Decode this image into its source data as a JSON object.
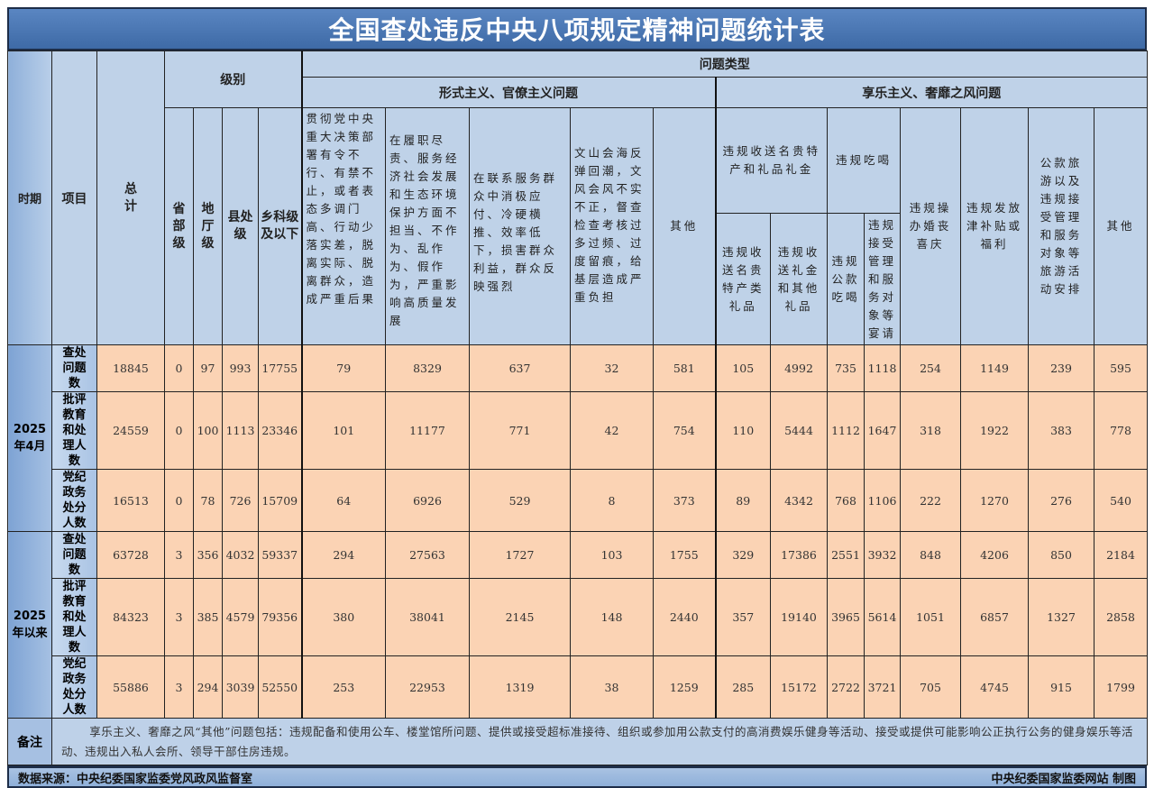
{
  "title": "全国查处违反中央八项规定精神问题统计表",
  "header": {
    "period": "时期",
    "item": "项目",
    "total": "总计",
    "level_group": "级别",
    "levels": [
      "省部级",
      "地厅级",
      "县处级",
      "乡科级及以下"
    ],
    "problem_type": "问题类型",
    "formalism_group": "形式主义、官僚主义问题",
    "formalism_cols": [
      "贯彻党中央重大决策部署有令不行、有禁不止，或者表态多调门高、行动少落实差，脱离实际、脱离群众，造成严重后果",
      "在履职尽责、服务经济社会发展和生态环境保护方面不担当、不作为、乱作为、假作为，严重影响高质量发展",
      "在联系服务群众中消极应付、冷硬横推、效率低下，损害群众利益，群众反映强烈",
      "文山会海反弹回潮，文风会风不实不正，督查检查考核过多过频、过度留痕，给基层造成严重负担",
      "其他"
    ],
    "hedonism_group": "享乐主义、奢靡之风问题",
    "gifts_group": "违规收送名贵特产和礼品礼金",
    "gifts_cols": [
      "违规收送名贵特产类礼品",
      "违规收送礼金和其他礼品"
    ],
    "dining_group": "违规吃喝",
    "dining_cols": [
      "违规公款吃喝",
      "违规接受管理和服务对象等宴请"
    ],
    "hedonism_cols": [
      "违规操办婚丧喜庆",
      "违规发放津补贴或福利",
      "公款旅游以及违规接受管理和服务对象等旅游活动安排",
      "其他"
    ]
  },
  "periods": [
    {
      "label": "2025年4月",
      "rows": [
        {
          "item": "查处问题数",
          "values": [
            18845,
            0,
            97,
            993,
            17755,
            79,
            8329,
            637,
            32,
            581,
            105,
            4992,
            735,
            1118,
            254,
            1149,
            239,
            595
          ]
        },
        {
          "item": "批评教育和处理人数",
          "values": [
            24559,
            0,
            100,
            1113,
            23346,
            101,
            11177,
            771,
            42,
            754,
            110,
            5444,
            1112,
            1647,
            318,
            1922,
            383,
            778
          ]
        },
        {
          "item": "党纪政务处分人数",
          "values": [
            16513,
            0,
            78,
            726,
            15709,
            64,
            6926,
            529,
            8,
            373,
            89,
            4342,
            768,
            1106,
            222,
            1270,
            276,
            540
          ]
        }
      ]
    },
    {
      "label": "2025年以来",
      "rows": [
        {
          "item": "查处问题数",
          "values": [
            63728,
            3,
            356,
            4032,
            59337,
            294,
            27563,
            1727,
            103,
            1755,
            329,
            17386,
            2551,
            3932,
            848,
            4206,
            850,
            2184
          ]
        },
        {
          "item": "批评教育和处理人数",
          "values": [
            84323,
            3,
            385,
            4579,
            79356,
            380,
            38041,
            2145,
            148,
            2440,
            357,
            19140,
            3965,
            5614,
            1051,
            6857,
            1327,
            2858
          ]
        },
        {
          "item": "党纪政务处分人数",
          "values": [
            55886,
            3,
            294,
            3039,
            52550,
            253,
            22953,
            1319,
            38,
            1259,
            285,
            15172,
            2722,
            3721,
            705,
            4745,
            915,
            1799
          ]
        }
      ]
    }
  ],
  "notes": {
    "label": "备注",
    "text": "享乐主义、奢靡之风“其他”问题包括：违规配备和使用公车、楼堂馆所问题、提供或接受超标准接待、组织或参加用公款支付的高消费娱乐健身等活动、接受或提供可能影响公正执行公务的健身娱乐等活动、违规出入私人会所、领导干部住房违规。"
  },
  "footer": {
    "source": "数据来源：中央纪委国家监委党风政风监督室",
    "credit": "中央纪委国家监委网站 制图"
  }
}
